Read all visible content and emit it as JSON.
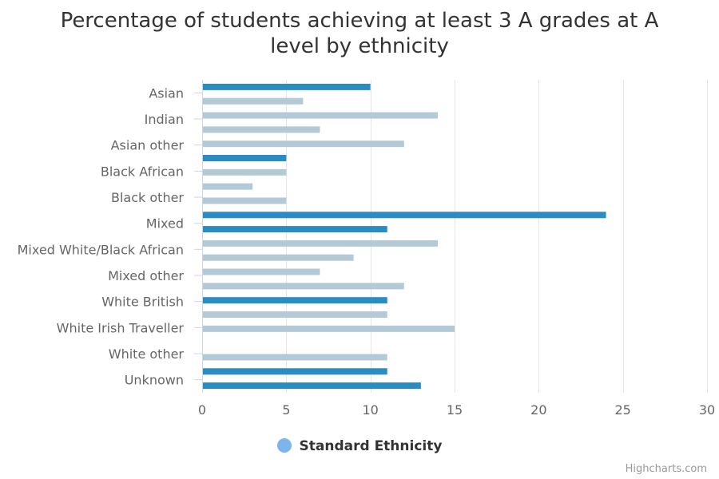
{
  "chart_data": {
    "type": "bar",
    "orientation": "horizontal",
    "title_lines": [
      "Percentage of students achieving at least 3 A grades at A",
      "level by ethnicity"
    ],
    "xlim": [
      0,
      30
    ],
    "xticks": [
      0,
      5,
      10,
      15,
      20,
      25,
      30
    ],
    "grid": true,
    "legend": {
      "position": "bottom-center",
      "label": "Standard Ethnicity",
      "color": "#7cb5ec"
    },
    "colors": {
      "standard": "#2b8cc4",
      "detailed": "#b3c9d6"
    },
    "category_labels": [
      "Asian",
      "Indian",
      "Asian other",
      "Black African",
      "Black other",
      "Mixed",
      "Mixed White/Black African",
      "Mixed other",
      "White British",
      "White Irish Traveller",
      "White other",
      "Unknown"
    ],
    "bars": [
      {
        "value": 10,
        "kind": "standard"
      },
      {
        "value": 6,
        "kind": "detailed"
      },
      {
        "value": 14,
        "kind": "detailed"
      },
      {
        "value": 7,
        "kind": "detailed"
      },
      {
        "value": 12,
        "kind": "detailed"
      },
      {
        "value": 5,
        "kind": "standard"
      },
      {
        "value": 5,
        "kind": "detailed"
      },
      {
        "value": 3,
        "kind": "detailed"
      },
      {
        "value": 5,
        "kind": "detailed"
      },
      {
        "value": 24,
        "kind": "standard"
      },
      {
        "value": 11,
        "kind": "standard"
      },
      {
        "value": 14,
        "kind": "detailed"
      },
      {
        "value": 9,
        "kind": "detailed"
      },
      {
        "value": 7,
        "kind": "detailed"
      },
      {
        "value": 12,
        "kind": "detailed"
      },
      {
        "value": 11,
        "kind": "standard"
      },
      {
        "value": 11,
        "kind": "detailed"
      },
      {
        "value": 15,
        "kind": "detailed"
      },
      {
        "value": 0,
        "kind": "detailed"
      },
      {
        "value": 11,
        "kind": "detailed"
      },
      {
        "value": 11,
        "kind": "standard"
      },
      {
        "value": 13,
        "kind": "standard"
      }
    ]
  },
  "credits": "Highcharts.com"
}
